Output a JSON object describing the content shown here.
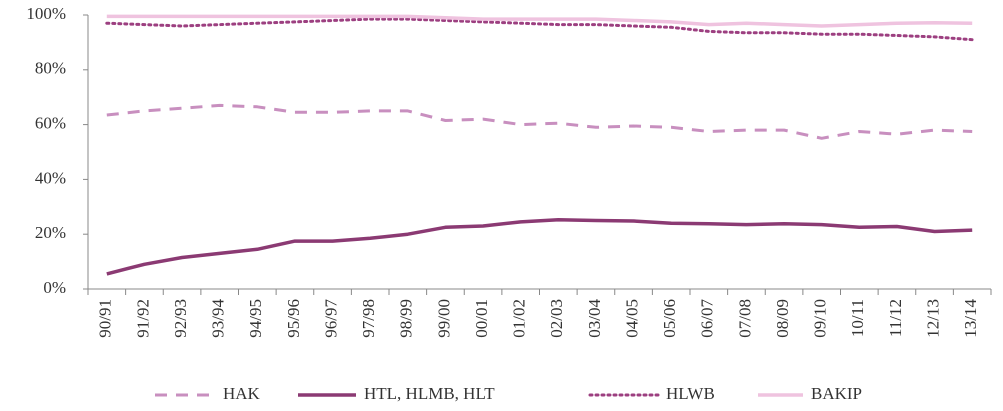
{
  "chart_data": {
    "type": "line",
    "categories": [
      "90/91",
      "91/92",
      "92/93",
      "93/94",
      "94/95",
      "95/96",
      "96/97",
      "97/98",
      "98/99",
      "99/00",
      "00/01",
      "01/02",
      "02/03",
      "03/04",
      "04/05",
      "05/06",
      "06/07",
      "07/08",
      "08/09",
      "09/10",
      "10/11",
      "11/12",
      "12/13",
      "13/14"
    ],
    "series": [
      {
        "name": "HAK",
        "color": "#c88fbf",
        "style": "dashed",
        "width": 3,
        "values": [
          63.5,
          65,
          66,
          67,
          66.5,
          64.5,
          64.5,
          65,
          65,
          61.5,
          62,
          60,
          60.5,
          59,
          59.5,
          59,
          57.5,
          58,
          58,
          55,
          57.5,
          56.5,
          58,
          57.5
        ]
      },
      {
        "name": "HTL, HLMB, HLT",
        "color": "#8b3a73",
        "style": "solid",
        "width": 3.5,
        "values": [
          5.5,
          9,
          11.5,
          13,
          14.5,
          17.5,
          17.5,
          18.5,
          20,
          22.5,
          23,
          24.5,
          25.3,
          25,
          24.8,
          24,
          23.8,
          23.5,
          23.8,
          23.5,
          22.5,
          22.8,
          21,
          21.5
        ]
      },
      {
        "name": "HLWB",
        "color": "#9c3f80",
        "style": "dotted",
        "width": 3,
        "values": [
          97,
          96.5,
          96,
          96.5,
          97,
          97.5,
          98,
          98.5,
          98.5,
          98,
          97.5,
          97,
          96.5,
          96.5,
          96,
          95.5,
          94,
          93.5,
          93.5,
          93,
          93,
          92.5,
          92,
          91
        ]
      },
      {
        "name": "BAKIP",
        "color": "#efc3df",
        "style": "solid",
        "width": 3.5,
        "values": [
          99.5,
          99.5,
          99.5,
          99.5,
          99.5,
          99.5,
          99.5,
          99.5,
          99.5,
          99,
          98.5,
          98.5,
          98.5,
          98.5,
          98,
          97.5,
          96.5,
          97,
          96.5,
          96,
          96.5,
          97,
          97.2,
          97
        ]
      }
    ],
    "ylim": [
      0,
      100
    ],
    "yticks": [
      {
        "value": 0,
        "label": "0%"
      },
      {
        "value": 20,
        "label": "20%"
      },
      {
        "value": 40,
        "label": "40%"
      },
      {
        "value": 60,
        "label": "60%"
      },
      {
        "value": 80,
        "label": "80%"
      },
      {
        "value": 100,
        "label": "100%"
      }
    ],
    "grid": false,
    "legend": "bottom"
  }
}
